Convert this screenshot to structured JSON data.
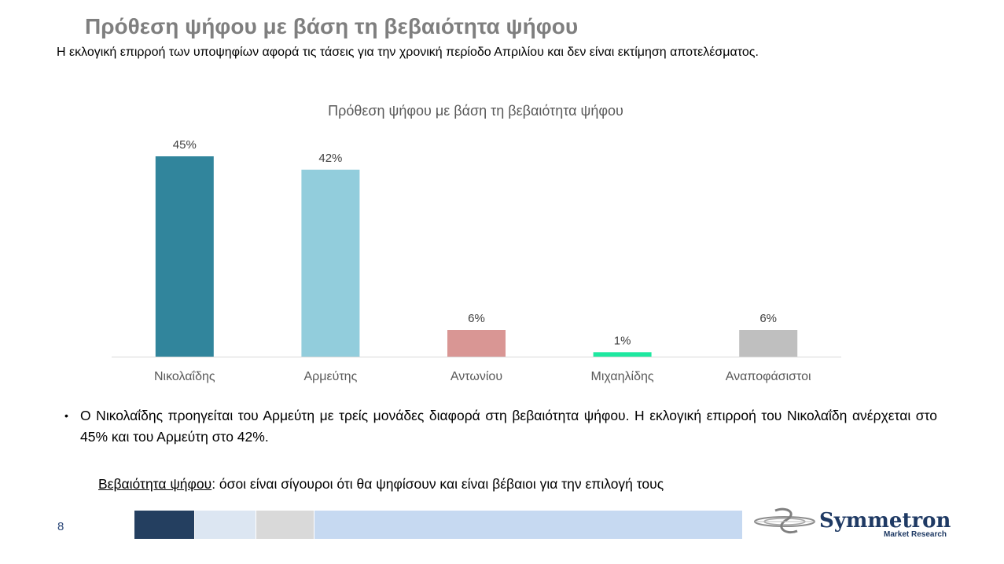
{
  "slide": {
    "title": "Πρόθεση ψήφου με βάση τη βεβαιότητα ψήφου",
    "subtitle": "Η εκλογική επιρροή των υποψηφίων αφορά τις τάσεις για την χρονική περίοδο Απριλίου και δεν είναι εκτίμηση αποτελέσματος.",
    "bullet": "Ο Νικολαΐδης προηγείται του Αρμεύτη με τρείς μονάδες διαφορά στη βεβαιότητα ψήφου. Η εκλογική επιρροή του Νικολαΐδη ανέρχεται στο 45% και του Αρμεύτη στο 42%.",
    "definition_term": "Βεβαιότητα ψήφου",
    "definition_text": ": όσοι είναι σίγουροι ότι θα ψηφίσουν και είναι βέβαιοι για την επιλογή τους",
    "page_number": "8"
  },
  "chart_data": {
    "type": "bar",
    "title": "Πρόθεση ψήφου με βάση τη βεβαιότητα ψήφου",
    "categories": [
      "Νικολαΐδης",
      "Αρμεύτης",
      "Αντωνίου",
      "Μιχαηλίδης",
      "Αναποφάσιστοι"
    ],
    "values": [
      45,
      42,
      6,
      1,
      6
    ],
    "value_labels": [
      "45%",
      "42%",
      "6%",
      "1%",
      "6%"
    ],
    "colors": [
      "#31859c",
      "#92cddc",
      "#d99694",
      "#1ee8a0",
      "#bfbfbf"
    ],
    "ylim": [
      0,
      45
    ],
    "grid": false,
    "legend": "none"
  },
  "footer": {
    "bar_colors": [
      "#243f60",
      "#dce6f2",
      "#d9d9d9",
      "#c6d9f1"
    ]
  },
  "logo": {
    "name": "Symmetron",
    "subtitle": "Market Research",
    "color": "#1f3a64"
  }
}
